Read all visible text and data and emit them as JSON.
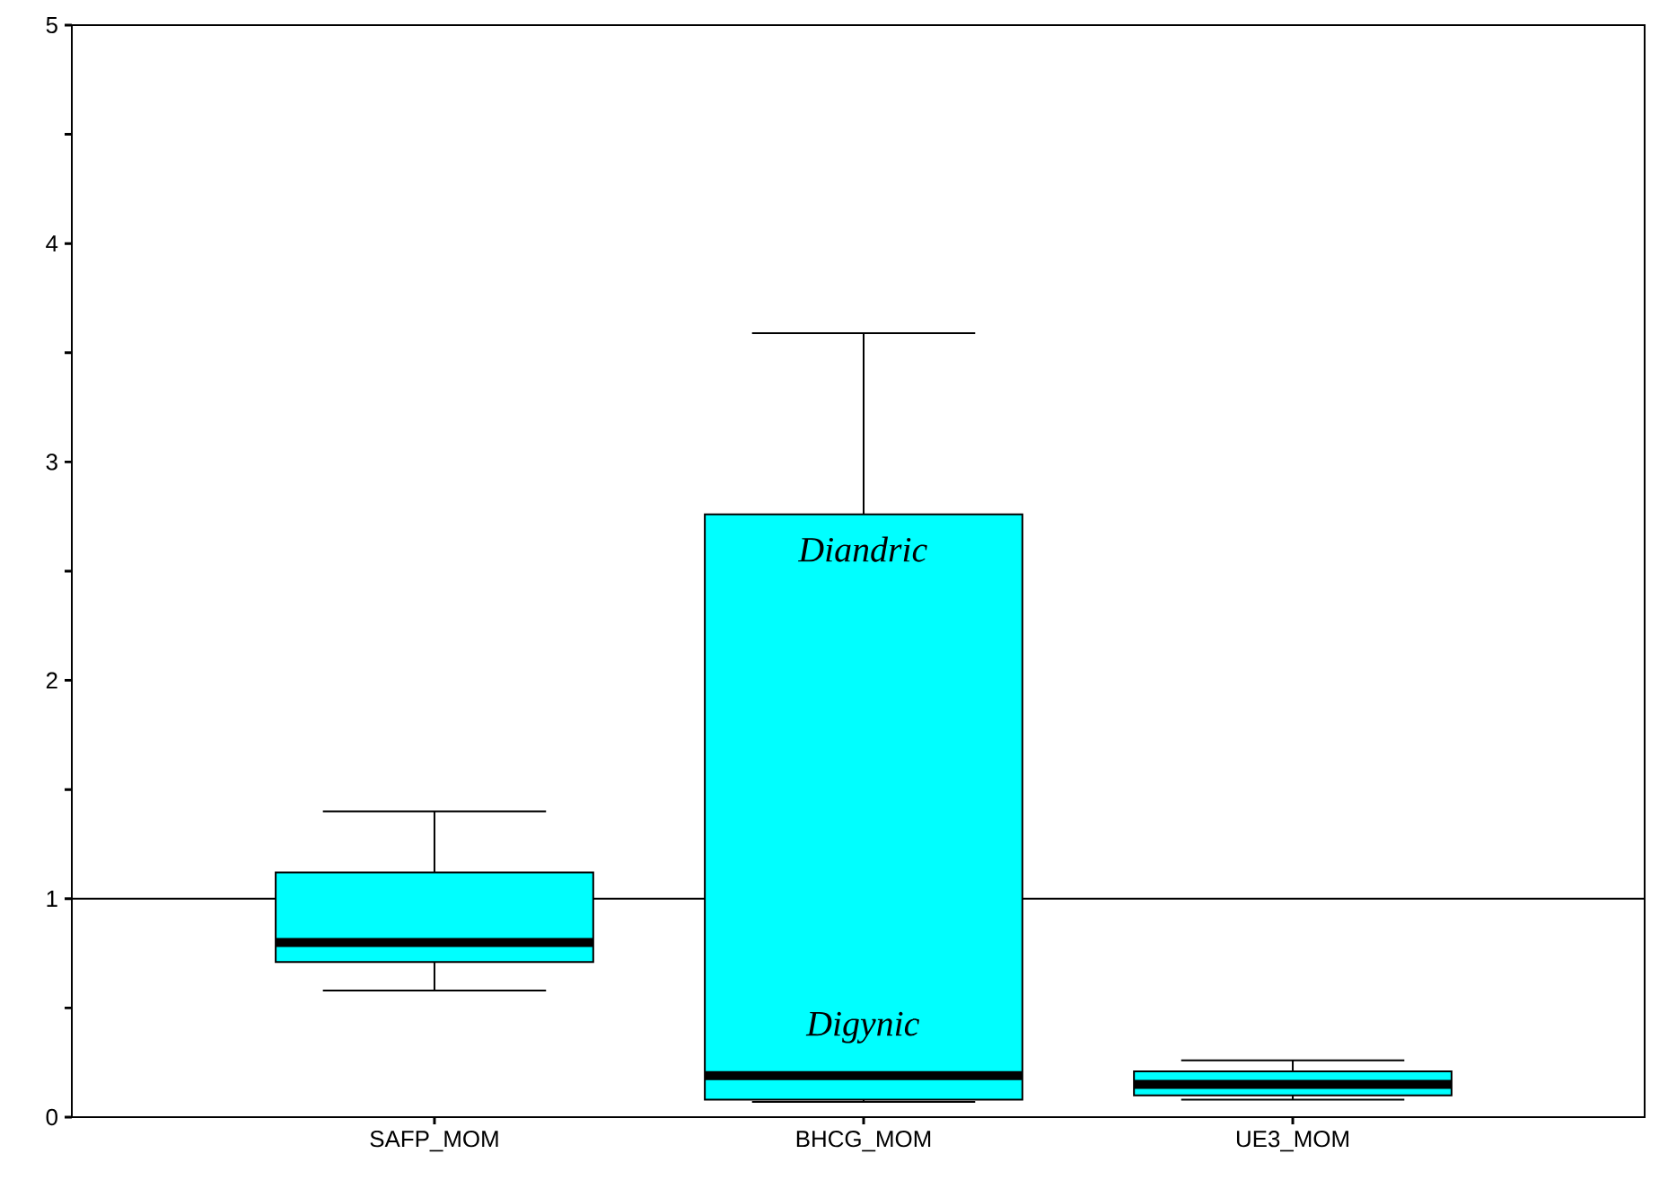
{
  "chart_data": {
    "type": "box",
    "categories": [
      "SAFP_MOM",
      "BHCG_MOM",
      "UE3_MOM"
    ],
    "color": "#00ffff",
    "boxes": [
      {
        "low": 0.58,
        "q1": 0.71,
        "median": 0.8,
        "q3": 1.12,
        "high": 1.4
      },
      {
        "low": 0.07,
        "q1": 0.08,
        "median": 0.19,
        "q3": 2.76,
        "high": 3.59
      },
      {
        "low": 0.08,
        "q1": 0.1,
        "median": 0.15,
        "q3": 0.21,
        "high": 0.26
      }
    ],
    "ylim": [
      0,
      5
    ],
    "yticks": [
      0,
      {
        "value": 0.5,
        "label": null
      },
      1,
      {
        "value": 1.5,
        "label": null
      },
      2,
      {
        "value": 2.5,
        "label": null
      },
      3,
      {
        "value": 3.5,
        "label": null
      },
      4,
      {
        "value": 4.5,
        "label": null
      },
      5
    ],
    "ref_lines": [
      {
        "axis": "y",
        "value": 1,
        "color": "#000000"
      }
    ],
    "annotations": [
      "Diandric",
      "Digynic"
    ],
    "grid": false
  }
}
